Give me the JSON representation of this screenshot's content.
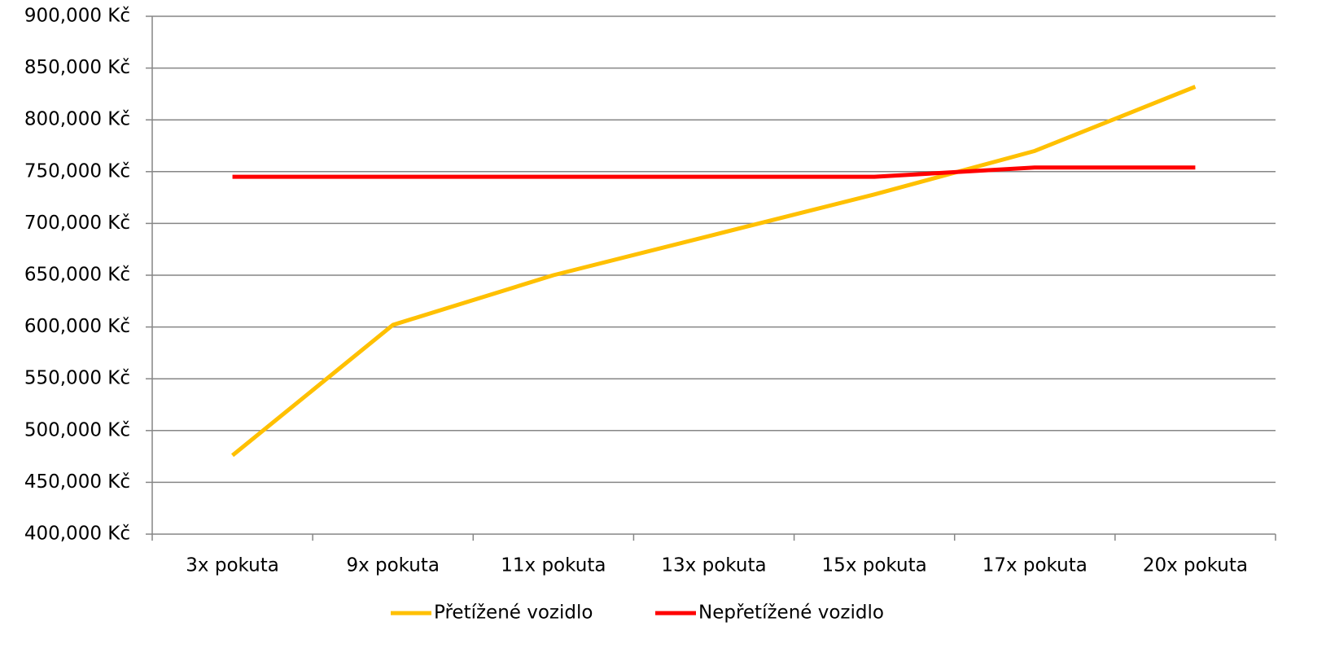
{
  "chart_data": {
    "type": "line",
    "categories": [
      "3x pokuta",
      "9x pokuta",
      "11x pokuta",
      "13x pokuta",
      "15x pokuta",
      "17x pokuta",
      "20x pokuta"
    ],
    "series": [
      {
        "name": "Přetížené vozidlo",
        "color": "#ffc000",
        "values": [
          476000,
          602000,
          650000,
          689000,
          728000,
          770000,
          832000
        ]
      },
      {
        "name": "Nepřetížené vozidlo",
        "color": "#ff0000",
        "values": [
          745000,
          745000,
          745000,
          745000,
          745000,
          754000,
          754000
        ]
      }
    ],
    "ylim": [
      400000,
      900000
    ],
    "yticks": [
      {
        "value": 400000,
        "label": "400,000 Kč"
      },
      {
        "value": 450000,
        "label": "450,000 Kč"
      },
      {
        "value": 500000,
        "label": "500,000 Kč"
      },
      {
        "value": 550000,
        "label": "550,000 Kč"
      },
      {
        "value": 600000,
        "label": "600,000 Kč"
      },
      {
        "value": 650000,
        "label": "650,000 Kč"
      },
      {
        "value": 700000,
        "label": "700,000 Kč"
      },
      {
        "value": 750000,
        "label": "750,000 Kč"
      },
      {
        "value": 800000,
        "label": "800,000 Kč"
      },
      {
        "value": 850000,
        "label": "850,000 Kč"
      },
      {
        "value": 900000,
        "label": "900,000 Kč"
      }
    ],
    "grid": true,
    "legend": "bottom"
  }
}
